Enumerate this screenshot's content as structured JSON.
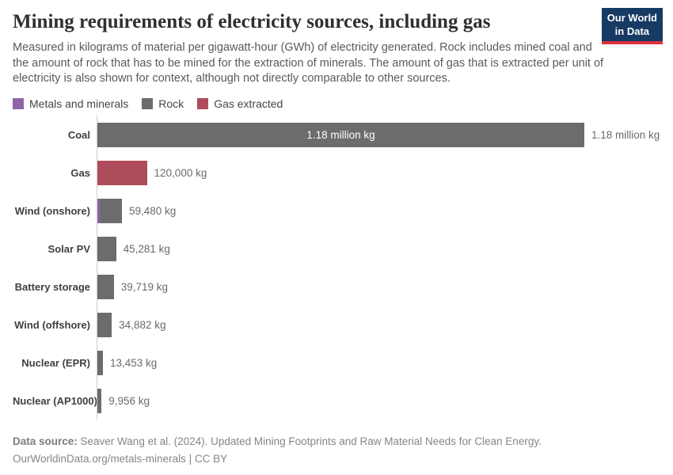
{
  "header": {
    "title": "Mining requirements of electricity sources, including gas",
    "logo": {
      "line1": "Our World",
      "line2": "in Data",
      "bg_color": "#173a63",
      "stripe_color": "#dc3341"
    }
  },
  "subtitle": "Measured in kilograms of material per gigawatt-hour (GWh) of electricity generated. Rock includes mined coal and the amount of rock that has to be mined for the extraction of minerals. The amount of gas that is extracted per unit of electricity is also shown for context, although not directly comparable to other sources.",
  "legend": {
    "items": [
      {
        "label": "Metals and minerals",
        "color": "#9064a7"
      },
      {
        "label": "Rock",
        "color": "#6c6c6e"
      },
      {
        "label": "Gas extracted",
        "color": "#ae4c5c"
      }
    ]
  },
  "chart_data": {
    "type": "bar",
    "orientation": "horizontal",
    "stacked": true,
    "title": "Mining requirements of electricity sources, including gas",
    "unit": "kg per GWh",
    "xlim": [
      0,
      1180000
    ],
    "grid": false,
    "axis_color": "#cfcfcf",
    "categories": [
      "Coal",
      "Gas",
      "Wind (onshore)",
      "Solar PV",
      "Battery storage",
      "Wind (offshore)",
      "Nuclear (EPR)",
      "Nuclear (AP1000)"
    ],
    "series": [
      {
        "name": "Metals and minerals",
        "color": "#9064a7",
        "values": [
          0,
          0,
          5000,
          0,
          0,
          0,
          0,
          0
        ]
      },
      {
        "name": "Rock",
        "color": "#6c6c6e",
        "values": [
          1180000,
          0,
          54480,
          45281,
          39719,
          34882,
          13453,
          9956
        ]
      },
      {
        "name": "Gas extracted",
        "color": "#ae4c5c",
        "values": [
          0,
          120000,
          0,
          0,
          0,
          0,
          0,
          0
        ]
      }
    ],
    "totals": [
      1180000,
      120000,
      59480,
      45281,
      39719,
      34882,
      13453,
      9956
    ],
    "value_labels": [
      "1.18 million kg",
      "120,000 kg",
      "59,480 kg",
      "45,281 kg",
      "39,719 kg",
      "34,882 kg",
      "13,453 kg",
      "9,956 kg"
    ],
    "inside_labels": [
      "1.18 million kg",
      null,
      null,
      null,
      null,
      null,
      null,
      null
    ]
  },
  "footer": {
    "datasource_label": "Data source:",
    "datasource_text": " Seaver Wang et al. (2024). Updated Mining Footprints and Raw Material Needs for Clean Energy.",
    "license_line": "OurWorldinData.org/metals-minerals | CC BY"
  }
}
